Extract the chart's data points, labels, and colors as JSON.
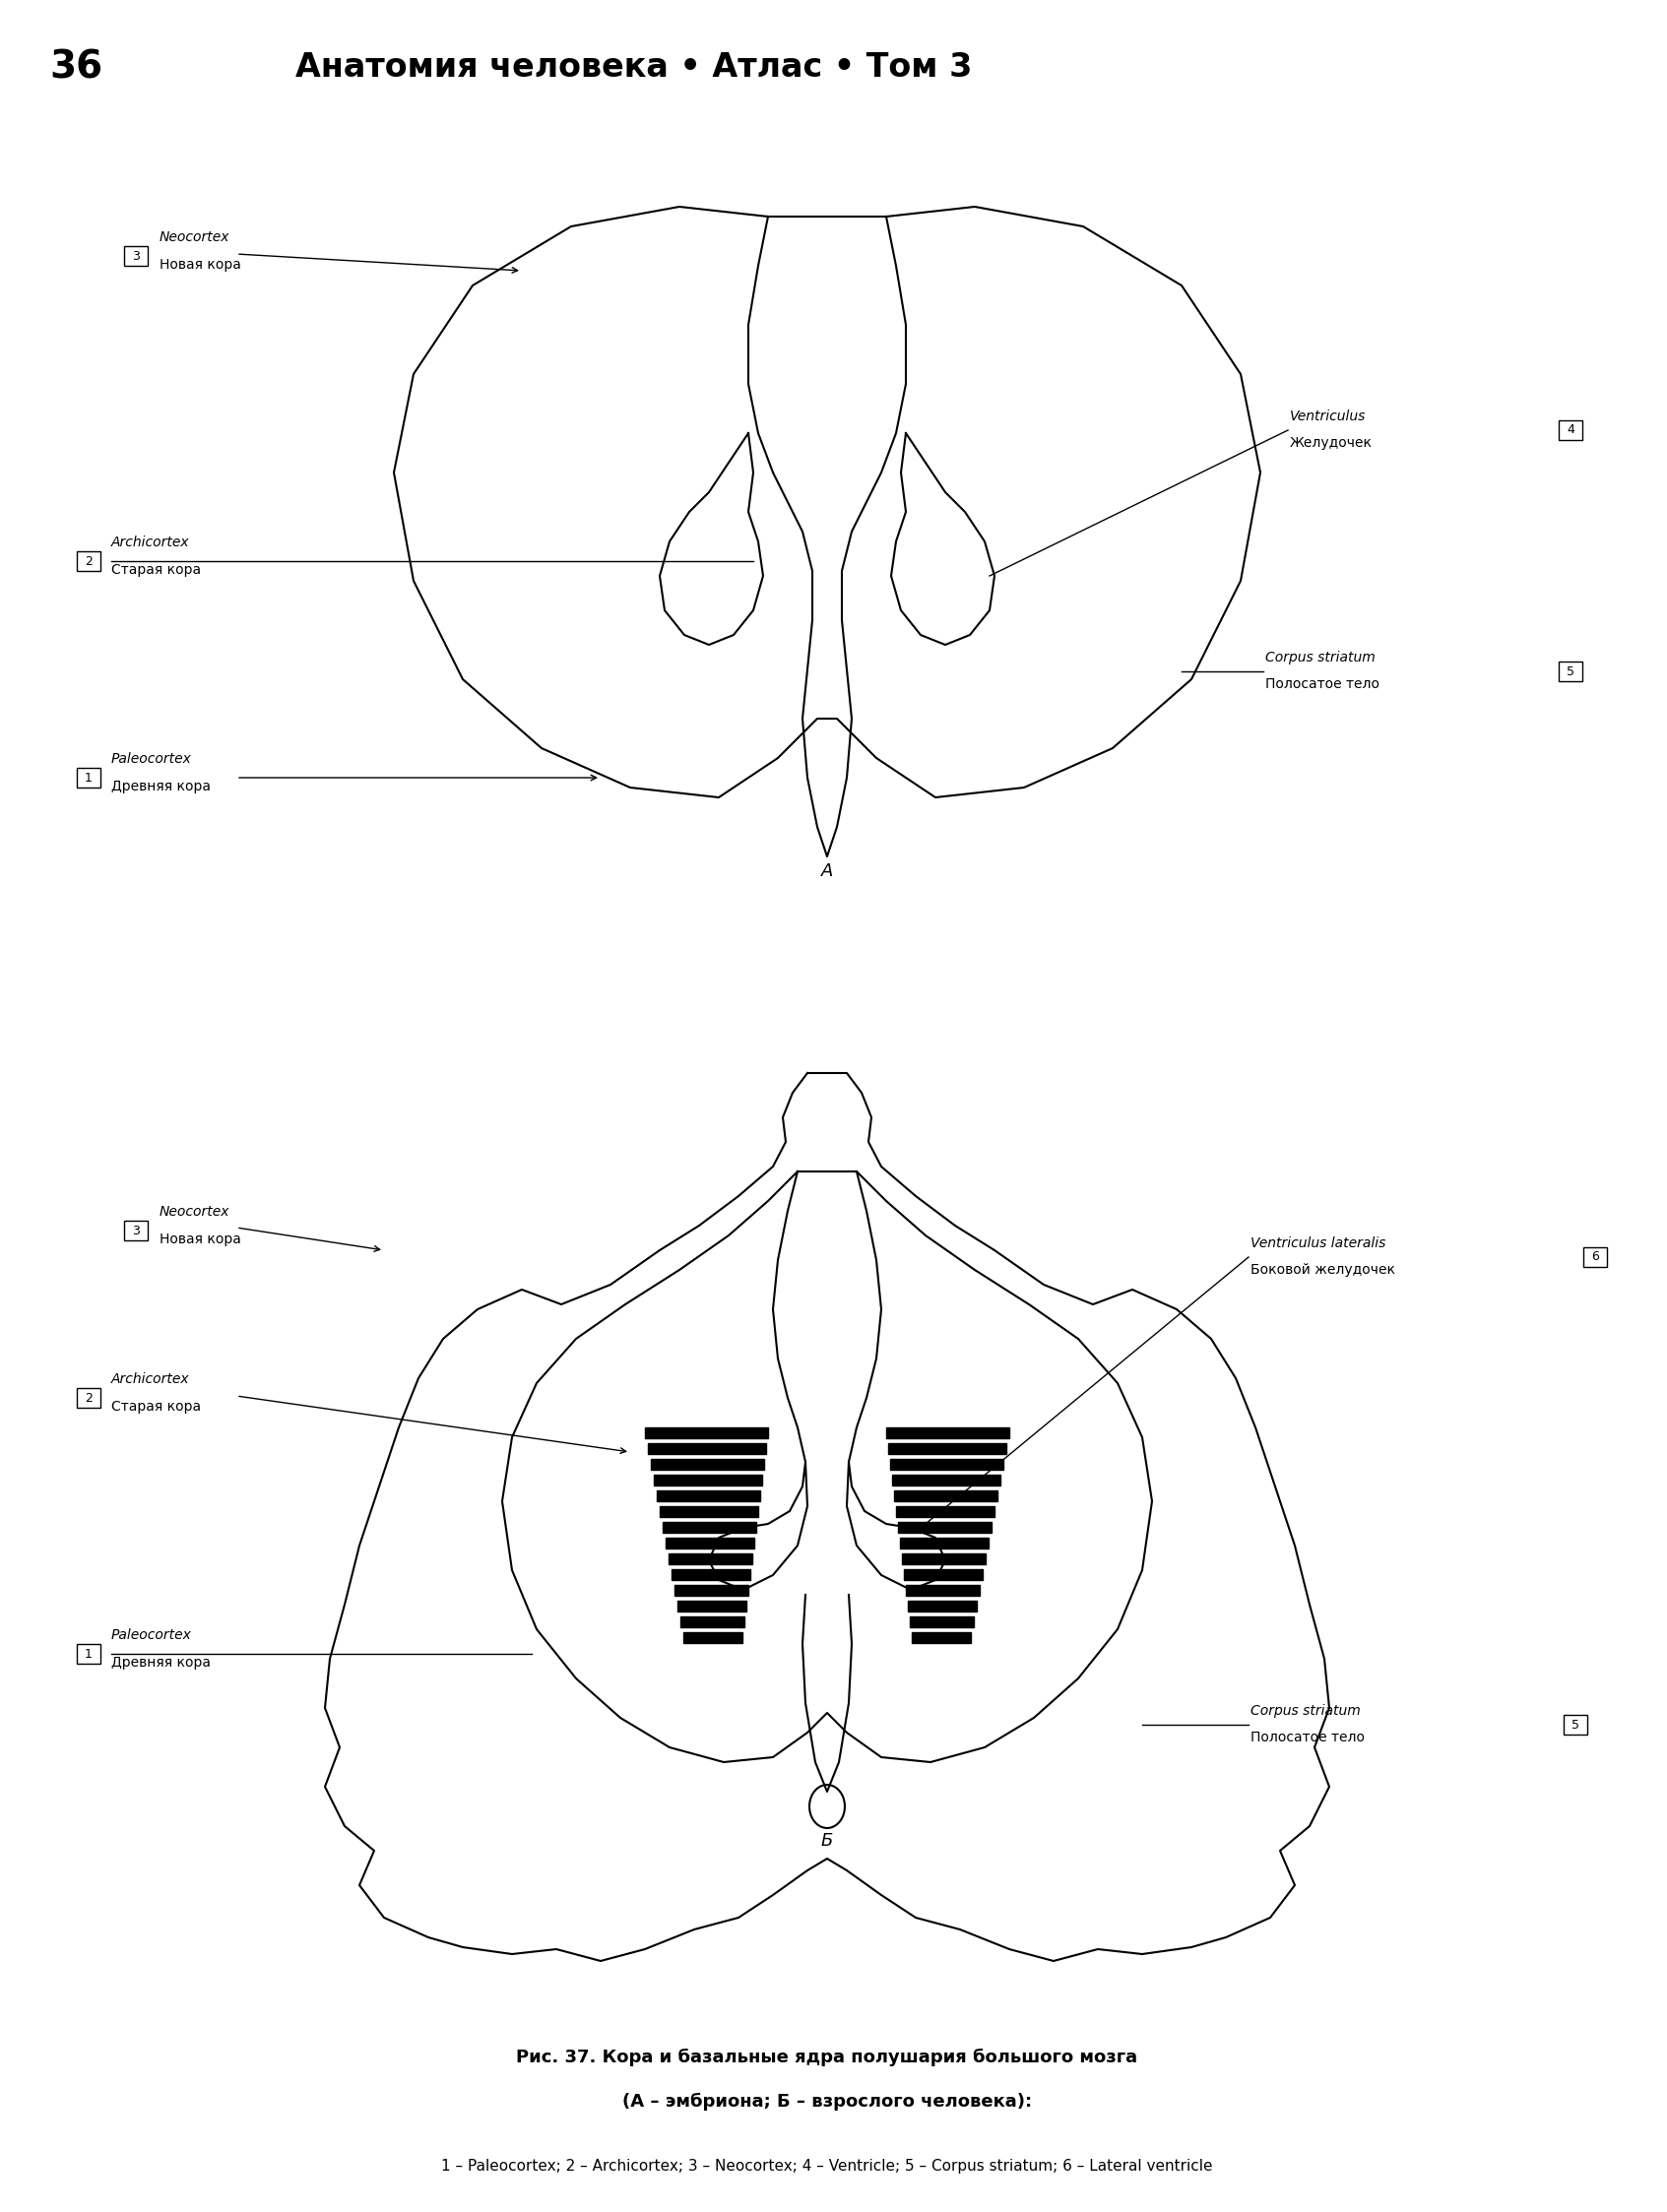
{
  "title_number": "36",
  "title_text": "Анатомия человека • Атлас • Том 3",
  "caption_line1": "Рис. 37. Кора и базальные ядра полушария большого мозга",
  "caption_line2": "(А – эмбриона; Б – взрослого человека):",
  "legend": "1 – Paleocortex; 2 – Archicortex; 3 – Neocortex; 4 – Ventricle; 5 – Corpus striatum; 6 – Lateral ventricle",
  "bg_color": "#ffffff",
  "line_color": "#000000"
}
